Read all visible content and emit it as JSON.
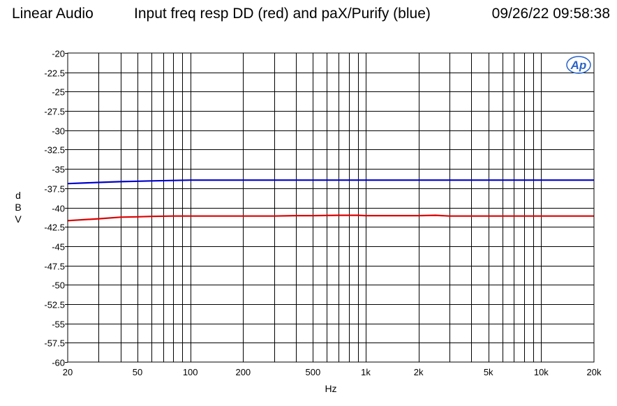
{
  "header": {
    "left": "Linear Audio",
    "title": "Input freq resp DD (red) and paX/Purify (blue)",
    "timestamp": "09/26/22 09:58:38"
  },
  "logo": {
    "text": "Ap"
  },
  "chart_data": {
    "type": "line",
    "xlabel": "Hz",
    "ylabel_chars": [
      "d",
      "B",
      "V"
    ],
    "xscale": "log",
    "xlim": [
      20,
      20000
    ],
    "ylim": [
      -60,
      -20
    ],
    "grid": true,
    "x_ticks": [
      {
        "value": 20,
        "label": "20"
      },
      {
        "value": 50,
        "label": "50"
      },
      {
        "value": 100,
        "label": "100"
      },
      {
        "value": 200,
        "label": "200"
      },
      {
        "value": 500,
        "label": "500"
      },
      {
        "value": 1000,
        "label": "1k"
      },
      {
        "value": 2000,
        "label": "2k"
      },
      {
        "value": 5000,
        "label": "5k"
      },
      {
        "value": 10000,
        "label": "10k"
      },
      {
        "value": 20000,
        "label": "20k"
      }
    ],
    "y_ticks": [
      "-20",
      "-22.5",
      "-25",
      "-27.5",
      "-30",
      "-32.5",
      "-35",
      "-37.5",
      "-40",
      "-42.5",
      "-45",
      "-47.5",
      "-50",
      "-52.5",
      "-55",
      "-57.5",
      "-60"
    ],
    "series": [
      {
        "color": "#0000cc",
        "x": [
          20,
          30,
          40,
          50,
          60,
          80,
          100,
          200,
          500,
          1000,
          2000,
          5000,
          10000,
          20000
        ],
        "y": [
          -36.9,
          -36.75,
          -36.65,
          -36.6,
          -36.55,
          -36.5,
          -36.45,
          -36.45,
          -36.45,
          -36.45,
          -36.45,
          -36.45,
          -36.45,
          -36.45
        ]
      },
      {
        "color": "#dd0000",
        "x": [
          20,
          30,
          40,
          50,
          60,
          80,
          100,
          200,
          300,
          400,
          500,
          700,
          900,
          1000,
          1500,
          2000,
          2500,
          3000,
          5000,
          10000,
          20000
        ],
        "y": [
          -41.7,
          -41.45,
          -41.25,
          -41.2,
          -41.15,
          -41.1,
          -41.1,
          -41.1,
          -41.1,
          -41.05,
          -41.05,
          -41.0,
          -41.0,
          -41.05,
          -41.05,
          -41.05,
          -41.0,
          -41.1,
          -41.1,
          -41.1,
          -41.1
        ]
      }
    ]
  }
}
